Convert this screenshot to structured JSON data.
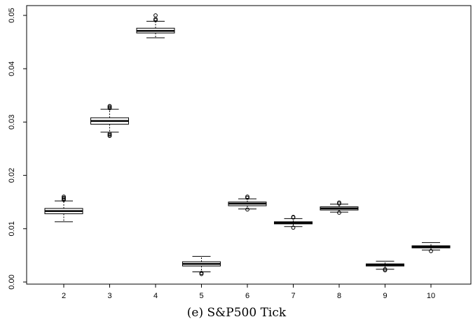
{
  "chart_data": {
    "type": "box",
    "title": "",
    "xlabel": "",
    "ylabel": "",
    "caption": "(e) S&P500 Tick",
    "categories": [
      "2",
      "3",
      "4",
      "5",
      "6",
      "7",
      "8",
      "9",
      "10"
    ],
    "ylim": [
      0,
      0.0505
    ],
    "yticks": [
      "0.00",
      "0.01",
      "0.02",
      "0.03",
      "0.04",
      "0.05"
    ],
    "boxes": [
      {
        "category": "2",
        "whisker_low": 0.0113,
        "q1": 0.0128,
        "median": 0.0133,
        "q3": 0.0138,
        "whisker_high": 0.0152,
        "outliers": [
          0.0154,
          0.0156,
          0.0158,
          0.016
        ]
      },
      {
        "category": "3",
        "whisker_low": 0.0281,
        "q1": 0.0296,
        "median": 0.0302,
        "q3": 0.0308,
        "whisker_high": 0.0324,
        "outliers": [
          0.0274,
          0.0276,
          0.0278,
          0.0326,
          0.0328,
          0.033
        ]
      },
      {
        "category": "4",
        "whisker_low": 0.0458,
        "q1": 0.0467,
        "median": 0.0471,
        "q3": 0.0476,
        "whisker_high": 0.0489,
        "outliers": [
          0.0491,
          0.0493,
          0.05
        ]
      },
      {
        "category": "5",
        "whisker_low": 0.0019,
        "q1": 0.003,
        "median": 0.0034,
        "q3": 0.0038,
        "whisker_high": 0.0048,
        "outliers": [
          0.0015,
          0.0017
        ]
      },
      {
        "category": "6",
        "whisker_low": 0.0137,
        "q1": 0.0143,
        "median": 0.0147,
        "q3": 0.015,
        "whisker_high": 0.0156,
        "outliers": [
          0.0136,
          0.0158,
          0.016
        ]
      },
      {
        "category": "7",
        "whisker_low": 0.0104,
        "q1": 0.0109,
        "median": 0.0111,
        "q3": 0.0113,
        "whisker_high": 0.0119,
        "outliers": [
          0.0102,
          0.0121,
          0.0122
        ]
      },
      {
        "category": "8",
        "whisker_low": 0.0131,
        "q1": 0.0135,
        "median": 0.0138,
        "q3": 0.0141,
        "whisker_high": 0.0146,
        "outliers": [
          0.013,
          0.0147,
          0.0149
        ]
      },
      {
        "category": "9",
        "whisker_low": 0.0024,
        "q1": 0.003,
        "median": 0.0032,
        "q3": 0.0034,
        "whisker_high": 0.0039,
        "outliers": [
          0.0022,
          0.0024
        ]
      },
      {
        "category": "10",
        "whisker_low": 0.006,
        "q1": 0.0064,
        "median": 0.0066,
        "q3": 0.0068,
        "whisker_high": 0.0074,
        "outliers": [
          0.0058
        ]
      }
    ],
    "grid": false,
    "legend": "none"
  }
}
